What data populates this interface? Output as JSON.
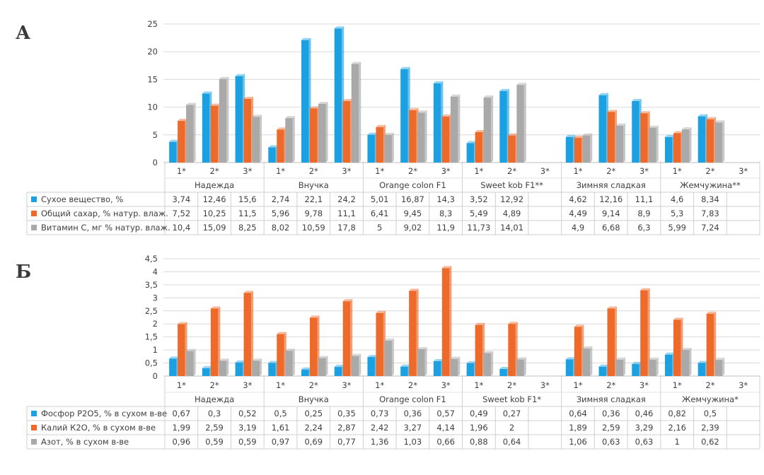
{
  "panels": [
    {
      "letter": "А",
      "chart_data": {
        "type": "bar",
        "ylim": [
          0,
          25
        ],
        "yticks": [
          "0",
          "5",
          "10",
          "15",
          "20",
          "25"
        ],
        "grid": true,
        "groups": [
          {
            "name": "Надежда",
            "subs": [
              "1*",
              "2*",
              "3*"
            ]
          },
          {
            "name": "Внучка",
            "subs": [
              "1*",
              "2*",
              "3*"
            ]
          },
          {
            "name": "Orange colon F1",
            "subs": [
              "1*",
              "2*",
              "3*"
            ]
          },
          {
            "name": "Sweet kob F1**",
            "subs": [
              "1*",
              "2*",
              "3*"
            ]
          },
          {
            "name": "Зимняя сладкая",
            "subs": [
              "1*",
              "2*",
              "3*"
            ]
          },
          {
            "name": "Жемчужина**",
            "subs": [
              "1*",
              "2*",
              "3*"
            ]
          }
        ],
        "series": [
          {
            "name": "Сухое вещество, %",
            "color": "#1ba1e2",
            "values": [
              3.74,
              12.46,
              15.6,
              2.74,
              22.1,
              24.2,
              5.01,
              16.87,
              14.3,
              3.52,
              12.92,
              null,
              4.62,
              12.16,
              11.1,
              4.6,
              8.34,
              null
            ],
            "labels": [
              "3,74",
              "12,46",
              "15,6",
              "2,74",
              "22,1",
              "24,2",
              "5,01",
              "16,87",
              "14,3",
              "3,52",
              "12,92",
              "",
              "4,62",
              "12,16",
              "11,1",
              "4,6",
              "8,34",
              ""
            ]
          },
          {
            "name": "Общий сахар, % натур. влаж.",
            "color": "#ee6a2a",
            "values": [
              7.52,
              10.25,
              11.5,
              5.96,
              9.78,
              11.1,
              6.41,
              9.45,
              8.3,
              5.49,
              4.89,
              null,
              4.49,
              9.14,
              8.9,
              5.3,
              7.83,
              null
            ],
            "labels": [
              "7,52",
              "10,25",
              "11,5",
              "5,96",
              "9,78",
              "11,1",
              "6,41",
              "9,45",
              "8,3",
              "5,49",
              "4,89",
              "",
              "4,49",
              "9,14",
              "8,9",
              "5,3",
              "7,83",
              ""
            ]
          },
          {
            "name": "Витамин С, мг % натур. влаж.",
            "color": "#a9a9a9",
            "values": [
              10.4,
              15.09,
              8.25,
              8.02,
              10.59,
              17.8,
              5,
              9.02,
              11.9,
              11.73,
              14.01,
              null,
              4.9,
              6.68,
              6.3,
              5.99,
              7.24,
              null
            ],
            "labels": [
              "10,4",
              "15,09",
              "8,25",
              "8,02",
              "10,59",
              "17,8",
              "5",
              "9,02",
              "11,9",
              "11,73",
              "14,01",
              "",
              "4,9",
              "6,68",
              "6,3",
              "5,99",
              "7,24",
              ""
            ]
          }
        ]
      }
    },
    {
      "letter": "Б",
      "chart_data": {
        "type": "bar",
        "ylim": [
          0,
          4.5
        ],
        "yticks": [
          "0",
          "0,5",
          "1",
          "1,5",
          "2",
          "2,5",
          "3",
          "3,5",
          "4",
          "4,5"
        ],
        "grid": true,
        "groups": [
          {
            "name": "Надежда",
            "subs": [
              "1*",
              "2*",
              "3*"
            ]
          },
          {
            "name": "Внучка",
            "subs": [
              "1*",
              "2*",
              "3*"
            ]
          },
          {
            "name": "Orange colon F1",
            "subs": [
              "1*",
              "2*",
              "3*"
            ]
          },
          {
            "name": "Sweet kob F1*",
            "subs": [
              "1*",
              "2*",
              "3*"
            ]
          },
          {
            "name": "Зимняя сладкая",
            "subs": [
              "1*",
              "2*",
              "3*"
            ]
          },
          {
            "name": "Жемчужина*",
            "subs": [
              "1*",
              "2*",
              "3*"
            ]
          }
        ],
        "series": [
          {
            "name": "Фосфор Р2О5, % в сухом в-ве",
            "color": "#1ba1e2",
            "values": [
              0.67,
              0.3,
              0.52,
              0.5,
              0.25,
              0.35,
              0.73,
              0.36,
              0.57,
              0.49,
              0.27,
              null,
              0.64,
              0.36,
              0.46,
              0.82,
              0.5,
              null
            ],
            "labels": [
              "0,67",
              "0,3",
              "0,52",
              "0,5",
              "0,25",
              "0,35",
              "0,73",
              "0,36",
              "0,57",
              "0,49",
              "0,27",
              "",
              "0,64",
              "0,36",
              "0,46",
              "0,82",
              "0,5",
              ""
            ]
          },
          {
            "name": "Калий К2О, % в сухом в-ве",
            "color": "#ee6a2a",
            "values": [
              1.99,
              2.59,
              3.19,
              1.61,
              2.24,
              2.87,
              2.42,
              3.27,
              4.14,
              1.96,
              2,
              null,
              1.89,
              2.59,
              3.29,
              2.16,
              2.39,
              null
            ],
            "labels": [
              "1,99",
              "2,59",
              "3,19",
              "1,61",
              "2,24",
              "2,87",
              "2,42",
              "3,27",
              "4,14",
              "1,96",
              "2",
              "",
              "1,89",
              "2,59",
              "3,29",
              "2,16",
              "2,39",
              ""
            ]
          },
          {
            "name": "Азот, % в сухом в-ве",
            "color": "#a9a9a9",
            "values": [
              0.96,
              0.59,
              0.59,
              0.97,
              0.69,
              0.77,
              1.36,
              1.03,
              0.66,
              0.88,
              0.64,
              null,
              1.06,
              0.63,
              0.63,
              1,
              0.62,
              null
            ],
            "labels": [
              "0,96",
              "0,59",
              "0,59",
              "0,97",
              "0,69",
              "0,77",
              "1,36",
              "1,03",
              "0,66",
              "0,88",
              "0,64",
              "",
              "1,06",
              "0,63",
              "0,63",
              "1",
              "0,62",
              ""
            ]
          }
        ]
      }
    }
  ]
}
